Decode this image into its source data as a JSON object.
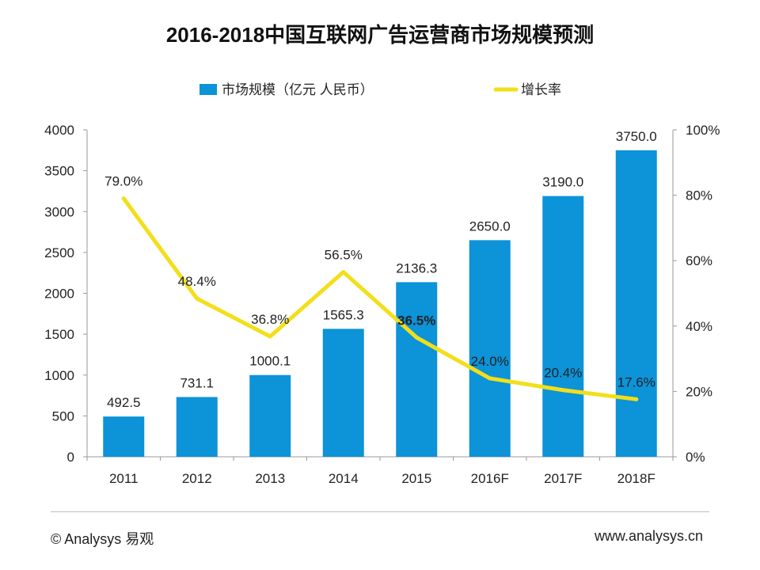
{
  "chart_data": {
    "type": "bar",
    "title": "2016-2018中国互联网广告运营商市场规模预测",
    "categories": [
      "2011",
      "2012",
      "2013",
      "2014",
      "2015",
      "2016F",
      "2017F",
      "2018F"
    ],
    "series": [
      {
        "name": "市场规模（亿元 人民币）",
        "type": "bar",
        "axis": "left",
        "values": [
          492.5,
          731.1,
          1000.1,
          1565.3,
          2136.3,
          2650.0,
          3190.0,
          3750.0
        ],
        "labels": [
          "492.5",
          "731.1",
          "1000.1",
          "1565.3",
          "2136.3",
          "2650.0",
          "3190.0",
          "3750.0"
        ]
      },
      {
        "name": "增长率",
        "type": "line",
        "axis": "right",
        "values": [
          79.0,
          48.4,
          36.8,
          56.5,
          36.5,
          24.0,
          20.4,
          17.6
        ],
        "labels": [
          "79.0%",
          "48.4%",
          "36.8%",
          "56.5%",
          "36.5%",
          "24.0%",
          "20.4%",
          "17.6%"
        ]
      }
    ],
    "y_left": {
      "ylim": [
        0,
        4000
      ],
      "ticks": [
        "0",
        "500",
        "1000",
        "1500",
        "2000",
        "2500",
        "3000",
        "3500",
        "4000"
      ]
    },
    "y_right": {
      "ylim": [
        0,
        100
      ],
      "ticks": [
        "0%",
        "20%",
        "40%",
        "60%",
        "80%",
        "100%"
      ]
    },
    "highlighted_label_index": 4,
    "legend_position": "top-center",
    "grid": false
  },
  "colors": {
    "bar": "#0c93d8",
    "line": "#f2df1a",
    "highlight": "#e02424",
    "axis": "#9a9a9a"
  },
  "footer": {
    "left": "© Analysys 易观",
    "right": "www.analysys.cn"
  }
}
